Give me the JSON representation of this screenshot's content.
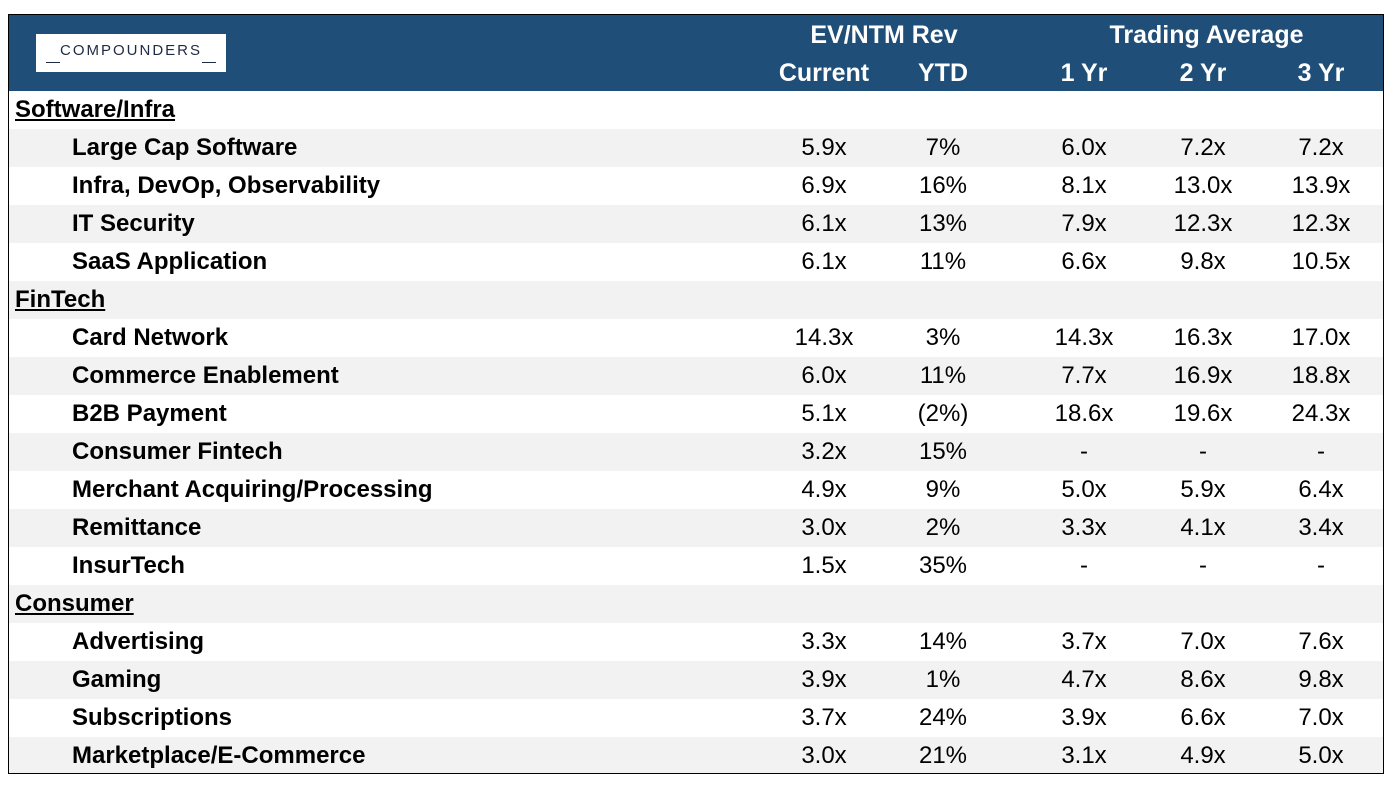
{
  "logo": {
    "text": "COMPOUNDERS"
  },
  "header": {
    "group_ev": "EV/NTM Rev",
    "group_trading": "Trading Average",
    "col_current": "Current",
    "col_ytd": "YTD",
    "col_1yr": "1 Yr",
    "col_2yr": "2 Yr",
    "col_3yr": "3 Yr"
  },
  "colors": {
    "header_bg": "#1F4E79",
    "row_shade": "#F2F2F2"
  },
  "chart_data": {
    "type": "table",
    "columns": [
      "Current",
      "YTD",
      "1 Yr",
      "2 Yr",
      "3 Yr"
    ],
    "column_groups": [
      {
        "name": "EV/NTM Rev",
        "columns": [
          "Current",
          "YTD"
        ]
      },
      {
        "name": "Trading Average",
        "columns": [
          "1 Yr",
          "2 Yr",
          "3 Yr"
        ]
      }
    ],
    "rows": [
      {
        "type": "category",
        "label": "Software/Infra"
      },
      {
        "type": "item",
        "label": "Large Cap Software",
        "current": "5.9x",
        "ytd": "7%",
        "yr1": "6.0x",
        "yr2": "7.2x",
        "yr3": "7.2x"
      },
      {
        "type": "item",
        "label": "Infra, DevOp, Observability",
        "current": "6.9x",
        "ytd": "16%",
        "yr1": "8.1x",
        "yr2": "13.0x",
        "yr3": "13.9x"
      },
      {
        "type": "item",
        "label": "IT Security",
        "current": "6.1x",
        "ytd": "13%",
        "yr1": "7.9x",
        "yr2": "12.3x",
        "yr3": "12.3x"
      },
      {
        "type": "item",
        "label": "SaaS Application",
        "current": "6.1x",
        "ytd": "11%",
        "yr1": "6.6x",
        "yr2": "9.8x",
        "yr3": "10.5x"
      },
      {
        "type": "category",
        "label": "FinTech"
      },
      {
        "type": "item",
        "label": "Card Network",
        "current": "14.3x",
        "ytd": "3%",
        "yr1": "14.3x",
        "yr2": "16.3x",
        "yr3": "17.0x"
      },
      {
        "type": "item",
        "label": "Commerce Enablement",
        "current": "6.0x",
        "ytd": "11%",
        "yr1": "7.7x",
        "yr2": "16.9x",
        "yr3": "18.8x"
      },
      {
        "type": "item",
        "label": "B2B Payment",
        "current": "5.1x",
        "ytd": "(2%)",
        "yr1": "18.6x",
        "yr2": "19.6x",
        "yr3": "24.3x"
      },
      {
        "type": "item",
        "label": "Consumer Fintech",
        "current": "3.2x",
        "ytd": "15%",
        "yr1": "-",
        "yr2": "-",
        "yr3": "-"
      },
      {
        "type": "item",
        "label": "Merchant Acquiring/Processing",
        "current": "4.9x",
        "ytd": "9%",
        "yr1": "5.0x",
        "yr2": "5.9x",
        "yr3": "6.4x"
      },
      {
        "type": "item",
        "label": "Remittance",
        "current": "3.0x",
        "ytd": "2%",
        "yr1": "3.3x",
        "yr2": "4.1x",
        "yr3": "3.4x"
      },
      {
        "type": "item",
        "label": "InsurTech",
        "current": "1.5x",
        "ytd": "35%",
        "yr1": "-",
        "yr2": "-",
        "yr3": "-"
      },
      {
        "type": "category",
        "label": "Consumer"
      },
      {
        "type": "item",
        "label": "Advertising",
        "current": "3.3x",
        "ytd": "14%",
        "yr1": "3.7x",
        "yr2": "7.0x",
        "yr3": "7.6x"
      },
      {
        "type": "item",
        "label": "Gaming",
        "current": "3.9x",
        "ytd": "1%",
        "yr1": "4.7x",
        "yr2": "8.6x",
        "yr3": "9.8x"
      },
      {
        "type": "item",
        "label": "Subscriptions",
        "current": "3.7x",
        "ytd": "24%",
        "yr1": "3.9x",
        "yr2": "6.6x",
        "yr3": "7.0x"
      },
      {
        "type": "item",
        "label": "Marketplace/E-Commerce",
        "current": "3.0x",
        "ytd": "21%",
        "yr1": "3.1x",
        "yr2": "4.9x",
        "yr3": "5.0x"
      }
    ]
  }
}
